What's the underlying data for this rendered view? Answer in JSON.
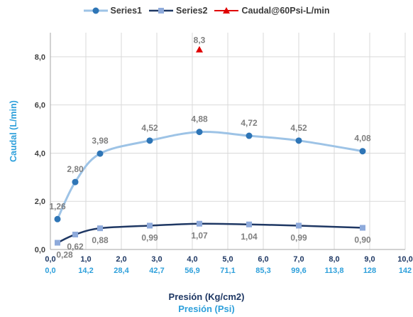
{
  "chart_data": {
    "type": "scatter",
    "xlabel": "Presión (Kg/cm2)",
    "xlabel2": "Presión (Psi)",
    "ylabel": "Caudal (L/min)",
    "xlim": [
      0,
      10
    ],
    "ylim": [
      0,
      9
    ],
    "x_ticks": [
      "0,0",
      "1,0",
      "2,0",
      "3,0",
      "4,0",
      "5,0",
      "6,0",
      "7,0",
      "8,0",
      "9,0",
      "10,0"
    ],
    "x2_ticks": [
      "0,0",
      "14,2",
      "28,4",
      "42,7",
      "56,9",
      "71,1",
      "85,3",
      "99,6",
      "113,8",
      "128",
      "142"
    ],
    "y_ticks": [
      "0,0",
      "2,0",
      "4,0",
      "6,0",
      "8,0"
    ],
    "series": [
      {
        "name": "Series1",
        "color": "#2e75b6",
        "line_color": "#9dc3e6",
        "marker": "circle",
        "x": [
          0.2,
          0.7,
          1.4,
          2.8,
          4.2,
          5.6,
          7.0,
          8.8
        ],
        "y": [
          1.26,
          2.8,
          3.98,
          4.52,
          4.88,
          4.72,
          4.52,
          4.08
        ],
        "labels": [
          "1,26",
          "2,80",
          "3,98",
          "4,52",
          "4,88",
          "4,72",
          "4,52",
          "4,08"
        ]
      },
      {
        "name": "Series2",
        "color": "#8eaadb",
        "line_color": "#1f3864",
        "marker": "square",
        "x": [
          0.2,
          0.7,
          1.4,
          2.8,
          4.2,
          5.6,
          7.0,
          8.8
        ],
        "y": [
          0.28,
          0.62,
          0.88,
          0.99,
          1.07,
          1.04,
          0.99,
          0.9
        ],
        "labels": [
          "0,28",
          "0,62",
          "0,88",
          "0,99",
          "1,07",
          "1,04",
          "0,99",
          "0,90"
        ]
      },
      {
        "name": "Caudal@60Psi-L/min",
        "color": "#e00000",
        "marker": "triangle",
        "x": [
          4.2
        ],
        "y": [
          8.3
        ],
        "labels": [
          "8,3"
        ]
      }
    ],
    "legend_position": "top"
  }
}
